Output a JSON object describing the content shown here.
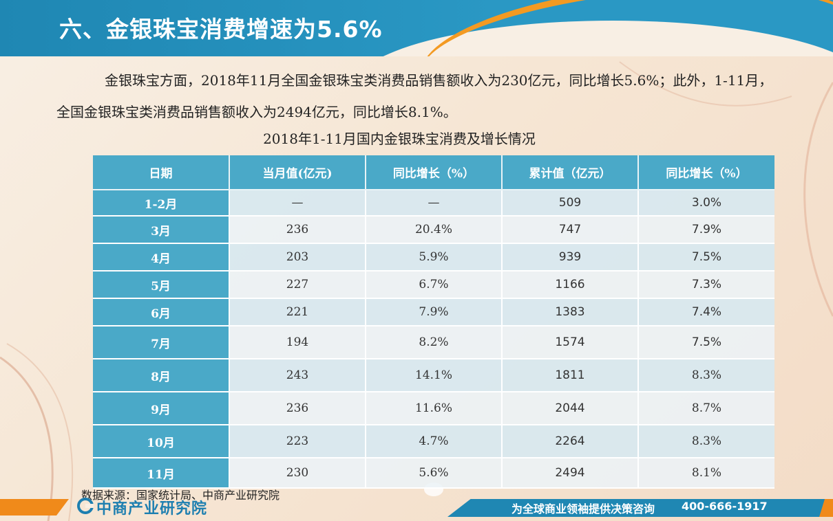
{
  "header": {
    "title": "六、金银珠宝消费增速为5.6%"
  },
  "intro": "金银珠宝方面，2018年11月全国金银珠宝类消费品销售额收入为230亿元，同比增长5.6%；此外，1-11月，全国金银珠宝类消费品销售额收入为2494亿元，同比增长8.1%。",
  "table": {
    "title": "2018年1-11月国内金银珠宝消费及增长情况",
    "columns": [
      "日期",
      "当月值(亿元)",
      "同比增长（%）",
      "累计值（亿元）",
      "同比增长（%）"
    ],
    "rows": [
      {
        "date": "1-2月",
        "monthly": "—",
        "monthly_growth": "—",
        "cumulative": "509",
        "cumulative_growth": "3.0%"
      },
      {
        "date": "3月",
        "monthly": "236",
        "monthly_growth": "20.4%",
        "cumulative": "747",
        "cumulative_growth": "7.9%"
      },
      {
        "date": "4月",
        "monthly": "203",
        "monthly_growth": "5.9%",
        "cumulative": "939",
        "cumulative_growth": "7.5%"
      },
      {
        "date": "5月",
        "monthly": "227",
        "monthly_growth": "6.7%",
        "cumulative": "1166",
        "cumulative_growth": "7.3%"
      },
      {
        "date": "6月",
        "monthly": "221",
        "monthly_growth": "7.9%",
        "cumulative": "1383",
        "cumulative_growth": "7.4%"
      },
      {
        "date": "7月",
        "monthly": "194",
        "monthly_growth": "8.2%",
        "cumulative": "1574",
        "cumulative_growth": "7.5%"
      },
      {
        "date": "8月",
        "monthly": "243",
        "monthly_growth": "14.1%",
        "cumulative": "1811",
        "cumulative_growth": "8.3%"
      },
      {
        "date": "9月",
        "monthly": "236",
        "monthly_growth": "11.6%",
        "cumulative": "2044",
        "cumulative_growth": "8.7%"
      },
      {
        "date": "10月",
        "monthly": "223",
        "monthly_growth": "4.7%",
        "cumulative": "2264",
        "cumulative_growth": "8.3%"
      },
      {
        "date": "11月",
        "monthly": "230",
        "monthly_growth": "5.6%",
        "cumulative": "2494",
        "cumulative_growth": "8.1%"
      }
    ]
  },
  "source": "数据来源：国家统计局、中商产业研究院",
  "footer": {
    "logo_text": "中商产业研究院",
    "logo_icon": "company-logo-icon",
    "slogan": "为全球商业领袖提供决策咨询",
    "phone": "400-666-1917"
  },
  "colors": {
    "header_blue": "#1f87b3",
    "table_header": "#4aa9c8",
    "accent_orange": "#f08a1a"
  }
}
